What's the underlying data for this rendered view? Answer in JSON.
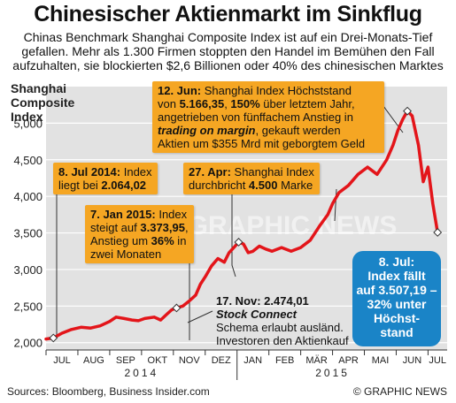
{
  "title": "Chinesischer Aktienmarkt im Sinkflug",
  "subtitle": [
    "Chinas Benchmark Shanghai Composite Index ist auf ein Drei-Monats-Tief",
    "gefallen. Mehr als 1.300 Firmen stoppten den Handel im Bemühen den Fall",
    "aufzuhalten, sie blockierten $2,6 Billionen oder 40% des chinesischen Marktes"
  ],
  "y_axis_label": [
    "Shanghai",
    "Composite",
    "Index"
  ],
  "chart_data": {
    "type": "line",
    "ylim": [
      1900,
      5500
    ],
    "yticks": [
      2000,
      2500,
      3000,
      3500,
      4000,
      4500,
      5000
    ],
    "ytick_labels": [
      "2,000",
      "2,500",
      "3,000",
      "3,500",
      "4,000",
      "4,500",
      "5,000"
    ],
    "months": [
      "JUL",
      "AUG",
      "SEP",
      "OKT",
      "NOV",
      "DEZ",
      "JAN",
      "FEB",
      "MÄR",
      "APR",
      "MAI",
      "JUN",
      "JUL"
    ],
    "years": [
      "2014",
      "2015"
    ],
    "x_label_note": "month index: 0 = Jul 2014 start, 12 = Jul 2015 start, 12.3 = Jul 8 2015",
    "series": [
      {
        "name": "",
        "color": "#e3151a",
        "x": [
          0,
          0.23,
          0.5,
          0.8,
          1.1,
          1.4,
          1.7,
          2.0,
          2.2,
          2.45,
          2.7,
          2.9,
          3.1,
          3.4,
          3.6,
          3.8,
          3.95,
          4.1,
          4.3,
          4.5,
          4.7,
          4.85,
          5.0,
          5.2,
          5.4,
          5.6,
          5.75,
          5.9,
          6.05,
          6.2,
          6.35,
          6.5,
          6.7,
          6.9,
          7.1,
          7.4,
          7.7,
          8.0,
          8.3,
          8.6,
          8.85,
          9.0,
          9.2,
          9.5,
          9.8,
          10.1,
          10.4,
          10.7,
          10.9,
          11.05,
          11.2,
          11.35,
          11.5,
          11.7,
          11.85,
          12.0,
          12.15,
          12.3
        ],
        "y": [
          2050,
          2064,
          2130,
          2180,
          2210,
          2200,
          2230,
          2290,
          2350,
          2330,
          2310,
          2300,
          2330,
          2350,
          2310,
          2390,
          2450,
          2474,
          2500,
          2570,
          2650,
          2800,
          2900,
          3050,
          3150,
          3100,
          3230,
          3300,
          3374,
          3350,
          3230,
          3250,
          3320,
          3280,
          3250,
          3300,
          3250,
          3300,
          3400,
          3600,
          3750,
          3900,
          4050,
          4150,
          4300,
          4400,
          4300,
          4500,
          4700,
          4900,
          5050,
          5166,
          5100,
          4700,
          4200,
          4400,
          3900,
          3507
        ]
      }
    ],
    "grid": true
  },
  "annotations": {
    "jun12": {
      "date": "12. Jun:",
      "l1": " Shanghai Index Höchststand",
      "l2a": "von ",
      "l2b": "5.166,35",
      "l2c": ", ",
      "l2d": "150%",
      "l2e": " über letztem Jahr,",
      "l3": "angetrieben von fünffachem Anstieg in",
      "l4a": "trading on margin",
      "l4b": ", gekauft werden",
      "l5": "Aktien um $355 Mrd mit geborgtem Geld"
    },
    "jul8_2014": {
      "date": "8. Jul 2014:",
      "l1": " Index",
      "l2a": "liegt bei ",
      "l2b": "2.064,02"
    },
    "apr27": {
      "date": "27. Apr:",
      "l1": " Shanghai Index",
      "l2a": "durchbricht ",
      "l2b": "4.500",
      "l2c": " Marke"
    },
    "jan7": {
      "date": "7. Jan 2015:",
      "l1": " Index",
      "l2a": "steigt auf ",
      "l2b": "3.373,95",
      "l2c": ",",
      "l3a": "Anstieg um ",
      "l3b": "36%",
      "l3c": " in",
      "l4": "zwei Monaten"
    },
    "nov17": {
      "date": "17. Nov: 2.474,01",
      "l2": "Stock Connect",
      "l3": "Schema erlaubt ausländ.",
      "l4": "Investoren den Aktienkauf"
    },
    "jul8": {
      "l1": "8. Jul:",
      "l2": "Index fällt",
      "l3": "auf 3.507,19 –",
      "l4": "32% unter",
      "l5": "Höchst-",
      "l6": "stand"
    }
  },
  "watermark": "GRAPHIC NEWS",
  "footer": {
    "source": "Sources: Bloomberg, Business Insider.com",
    "credit": "© GRAPHIC NEWS"
  },
  "colors": {
    "line": "#e3151a",
    "note_bg": "#f5a623",
    "plot_bg": "#e2e2e2",
    "callout_bg": "#1a84c7"
  }
}
